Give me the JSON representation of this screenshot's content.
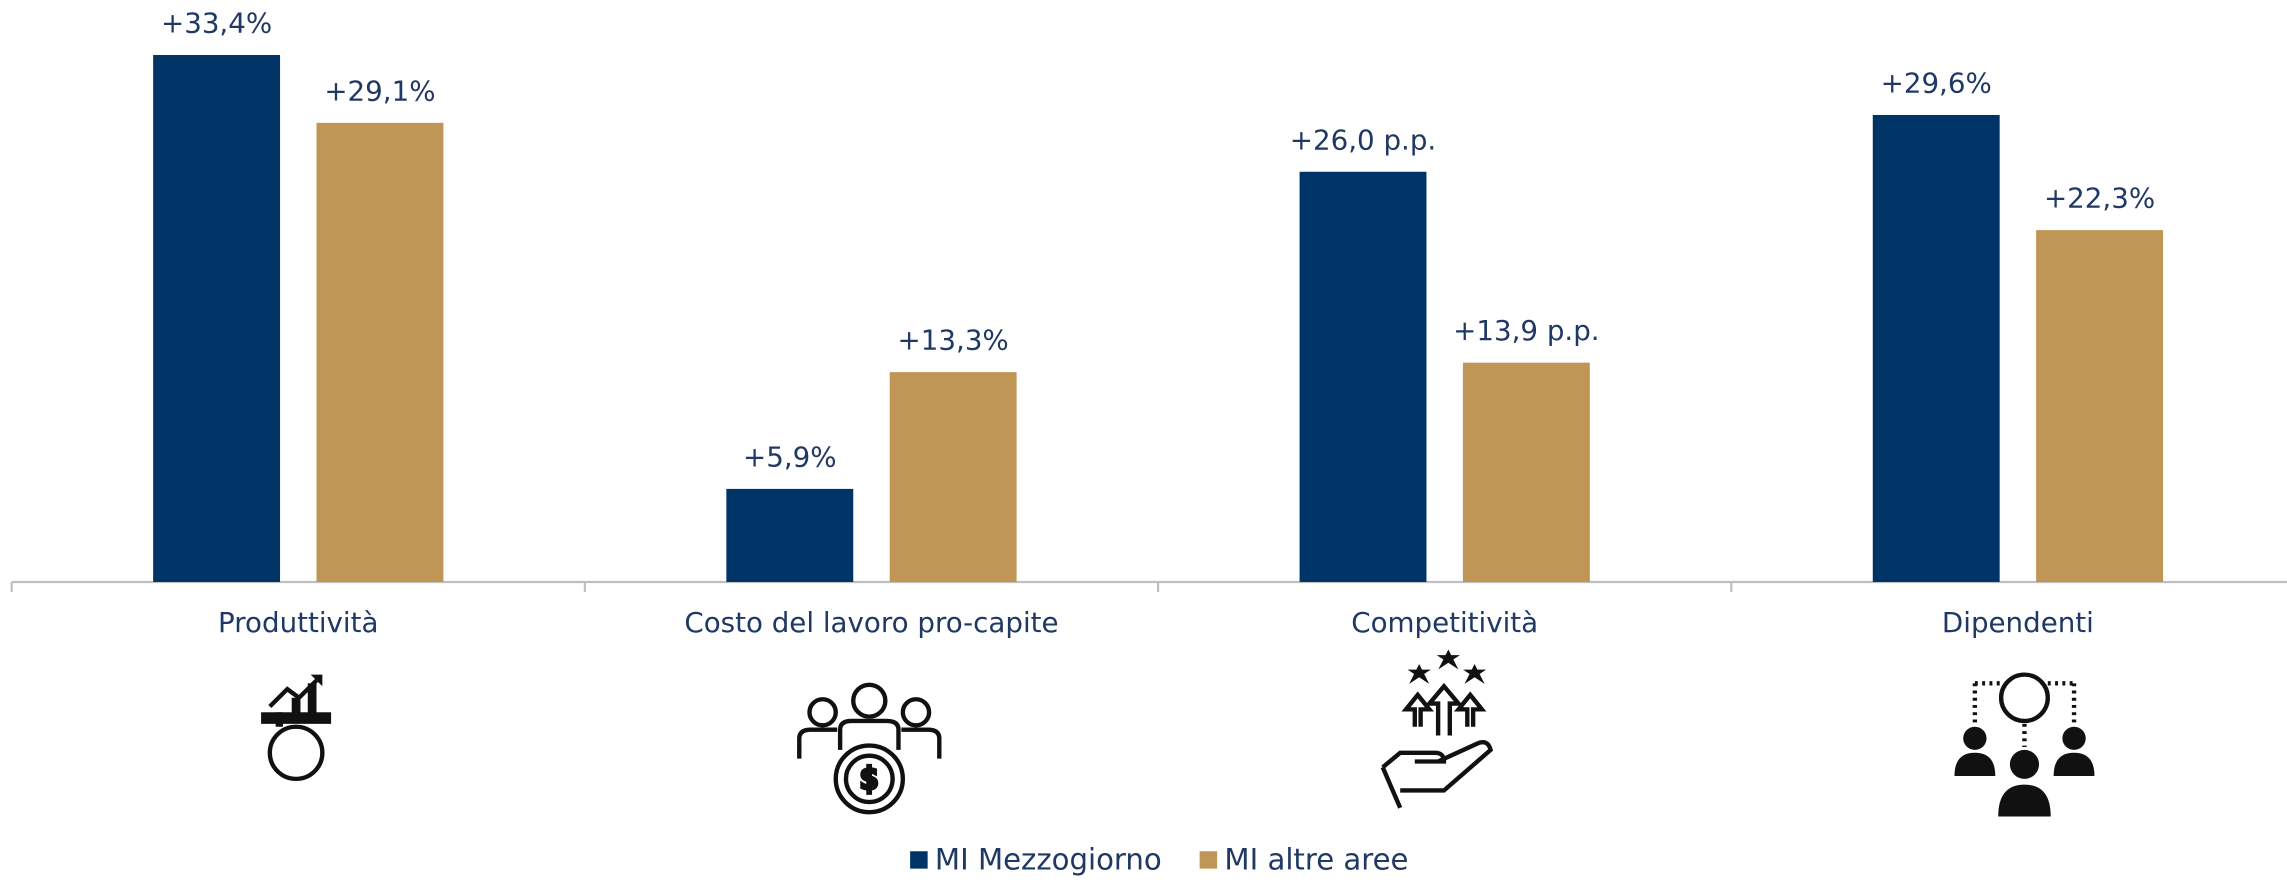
{
  "chart_data": {
    "type": "bar",
    "categories": [
      "Produttività",
      "Costo del lavoro pro-capite",
      "Competitività",
      "Dipendenti"
    ],
    "series": [
      {
        "name": "MI Mezzogiorno",
        "color": "#003366",
        "values": [
          33.4,
          5.9,
          26.0,
          29.6
        ],
        "value_labels": [
          "+33,4%",
          "+5,9%",
          "+26,0 p.p.",
          "+29,6%"
        ]
      },
      {
        "name": "MI altre aree",
        "color": "#bf9655",
        "values": [
          29.1,
          13.3,
          13.9,
          22.3
        ],
        "value_labels": [
          "+29,1%",
          "+13,3%",
          "+13,9 p.p.",
          "+22,3%"
        ]
      }
    ],
    "legend": "bottom"
  }
}
